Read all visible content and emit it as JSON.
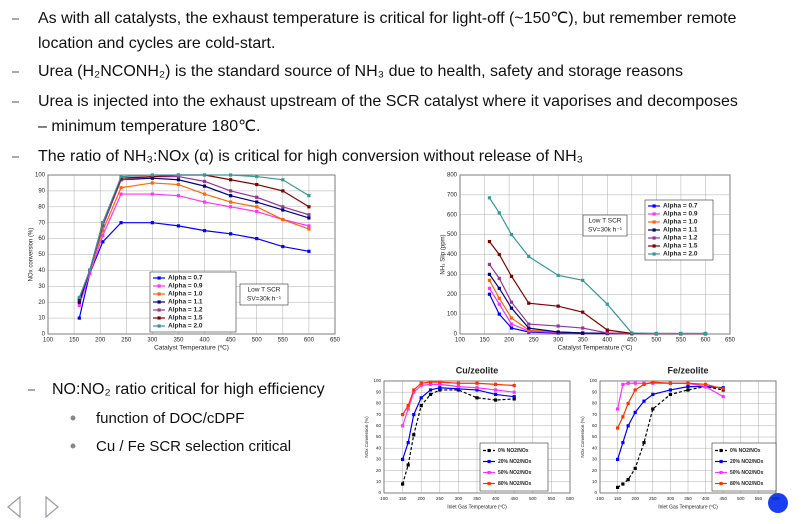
{
  "bullets": [
    "As with all catalysts, the exhaust temperature is critical for light-off (~150℃), but remember remote location and cycles are cold-start.",
    "Urea (H₂NCONH₂) is the standard source of NH₃ due to health, safety and storage reasons",
    "Urea is injected into the exhaust upstream of the SCR catalyst where it vaporises and decomposes – minimum temperature 180℃.",
    "The ratio of NH₃:NOx (α) is critical for high conversion without release of NH₃"
  ],
  "sub_section": {
    "text": "NO:NO₂ ratio critical for high efficiency",
    "items": [
      "function of DOC/cDPF",
      "Cu / Fe SCR selection critical"
    ]
  },
  "chart_data": [
    {
      "type": "line",
      "x_label": "Catalyst Temperature (ºC)",
      "y_label": "NOx conversion (%)",
      "annotations": [
        "Low T SCR",
        "SV=30k h⁻¹"
      ],
      "legend": "lower center",
      "xlim": [
        100,
        650
      ],
      "xticks": [
        100,
        150,
        200,
        250,
        300,
        350,
        400,
        450,
        500,
        550,
        600,
        650
      ],
      "ylim": [
        0,
        100
      ],
      "yticks": [
        0,
        10,
        20,
        30,
        40,
        50,
        60,
        70,
        80,
        90,
        100
      ],
      "grid": true,
      "x": [
        160,
        180,
        205,
        240,
        300,
        350,
        400,
        450,
        500,
        550,
        600
      ],
      "series": [
        {
          "name": "Alpha = 0.7",
          "color": "#0000ff",
          "values": [
            10,
            38,
            58,
            70,
            70,
            68,
            65,
            63,
            60,
            55,
            52
          ]
        },
        {
          "name": "Alpha = 0.9",
          "color": "#ff33ff",
          "values": [
            18,
            38,
            62,
            88,
            88,
            87,
            83,
            80,
            77,
            72,
            68
          ]
        },
        {
          "name": "Alpha = 1.0",
          "color": "#ff6600",
          "values": [
            20,
            40,
            65,
            92,
            95,
            94,
            88,
            83,
            80,
            72,
            66
          ]
        },
        {
          "name": "Alpha = 1.1",
          "color": "#000080",
          "values": [
            20,
            40,
            68,
            97,
            98,
            97,
            93,
            87,
            83,
            78,
            73
          ]
        },
        {
          "name": "Alpha = 1.2",
          "color": "#993399",
          "values": [
            22,
            40,
            68,
            97,
            99,
            99,
            96,
            90,
            86,
            80,
            75
          ]
        },
        {
          "name": "Alpha = 1.5",
          "color": "#800000",
          "values": [
            22,
            40,
            70,
            98,
            99,
            100,
            100,
            97,
            94,
            90,
            80
          ]
        },
        {
          "name": "Alpha = 2.0",
          "color": "#339999",
          "values": [
            23,
            40,
            70,
            99,
            100,
            100,
            100,
            100,
            99,
            97,
            87
          ]
        }
      ]
    },
    {
      "type": "line",
      "x_label": "Catalyst Temperature (ºC)",
      "y_label": "NH₃ Slip (ppm)",
      "annotations": [
        "Low T SCR",
        "SV=30k h⁻¹"
      ],
      "legend": "upper right",
      "xlim": [
        100,
        650
      ],
      "xticks": [
        100,
        150,
        200,
        250,
        300,
        350,
        400,
        450,
        500,
        550,
        600,
        650
      ],
      "ylim": [
        0,
        800
      ],
      "yticks": [
        0,
        100,
        200,
        300,
        400,
        500,
        600,
        700,
        800
      ],
      "grid": true,
      "x": [
        160,
        180,
        205,
        240,
        300,
        350,
        400,
        450,
        500,
        550,
        600
      ],
      "series": [
        {
          "name": "Alpha = 0.7",
          "color": "#0000ff",
          "values": [
            200,
            100,
            30,
            10,
            5,
            3,
            2,
            2,
            2,
            2,
            2
          ]
        },
        {
          "name": "Alpha = 0.9",
          "color": "#ff33ff",
          "values": [
            230,
            150,
            50,
            15,
            8,
            5,
            3,
            2,
            2,
            2,
            2
          ]
        },
        {
          "name": "Alpha = 1.0",
          "color": "#ff6600",
          "values": [
            270,
            180,
            80,
            20,
            10,
            5,
            3,
            2,
            2,
            2,
            2
          ]
        },
        {
          "name": "Alpha = 1.1",
          "color": "#000080",
          "values": [
            300,
            230,
            130,
            30,
            10,
            5,
            3,
            2,
            2,
            2,
            2
          ]
        },
        {
          "name": "Alpha = 1.2",
          "color": "#993399",
          "values": [
            350,
            280,
            160,
            50,
            40,
            30,
            5,
            2,
            2,
            2,
            2
          ]
        },
        {
          "name": "Alpha = 1.5",
          "color": "#800000",
          "values": [
            465,
            400,
            290,
            155,
            140,
            110,
            20,
            3,
            2,
            2,
            2
          ]
        },
        {
          "name": "Alpha = 2.0",
          "color": "#339999",
          "values": [
            685,
            610,
            500,
            390,
            295,
            270,
            150,
            5,
            3,
            3,
            3
          ]
        }
      ]
    },
    {
      "type": "line",
      "title": "Cu/zeolite",
      "title_color": "#1f4fbf",
      "x_label": "Inlet Gas Temperature (ºC)",
      "y_label": "NOx Conversion (%)",
      "legend": "lower right",
      "xlim": [
        100,
        600
      ],
      "xticks": [
        100,
        150,
        200,
        250,
        300,
        350,
        400,
        450,
        500,
        550,
        600
      ],
      "ylim": [
        0,
        100
      ],
      "yticks": [
        0,
        10,
        20,
        30,
        40,
        50,
        60,
        70,
        80,
        90,
        100
      ],
      "grid": true,
      "x": [
        150,
        165,
        180,
        200,
        225,
        250,
        300,
        350,
        400,
        450
      ],
      "series": [
        {
          "name": "0% NO2/NOx",
          "color": "#000000",
          "dash": true,
          "values": [
            8,
            25,
            52,
            78,
            88,
            92,
            92,
            85,
            83,
            84
          ]
        },
        {
          "name": "20% NO2/NOx",
          "color": "#0000ff",
          "values": [
            30,
            45,
            70,
            85,
            92,
            94,
            93,
            92,
            88,
            86
          ]
        },
        {
          "name": "50% NO2/NOx",
          "color": "#ff33ff",
          "values": [
            60,
            75,
            90,
            96,
            97,
            97,
            95,
            94,
            92,
            90
          ]
        },
        {
          "name": "80% NO2/NOx",
          "color": "#ff3300",
          "values": [
            70,
            78,
            92,
            98,
            99,
            99,
            98,
            98,
            97,
            96
          ]
        }
      ]
    },
    {
      "type": "line",
      "title": "Fe/zeolite",
      "title_color": "#ff6600",
      "x_label": "Inlet Gas Temperature (ºC)",
      "y_label": "NOx Conversion (%)",
      "legend": "lower right",
      "xlim": [
        100,
        600
      ],
      "xticks": [
        100,
        150,
        200,
        250,
        300,
        350,
        400,
        450,
        500,
        550,
        600
      ],
      "ylim": [
        0,
        100
      ],
      "yticks": [
        0,
        10,
        20,
        30,
        40,
        50,
        60,
        70,
        80,
        90,
        100
      ],
      "grid": true,
      "x": [
        150,
        165,
        180,
        200,
        225,
        250,
        300,
        350,
        400,
        450
      ],
      "series": [
        {
          "name": "0% NO2/NOx",
          "color": "#000000",
          "dash": true,
          "values": [
            5,
            8,
            12,
            22,
            45,
            75,
            88,
            92,
            95,
            92
          ]
        },
        {
          "name": "20% NO2/NOx",
          "color": "#0000ff",
          "values": [
            30,
            45,
            60,
            72,
            82,
            88,
            92,
            95,
            95,
            94
          ]
        },
        {
          "name": "50% NO2/NOx",
          "color": "#ff33ff",
          "values": [
            75,
            97,
            98,
            98,
            98,
            98,
            98,
            98,
            95,
            86
          ]
        },
        {
          "name": "80% NO2/NOx",
          "color": "#ff3300",
          "values": [
            58,
            68,
            80,
            92,
            97,
            99,
            98,
            98,
            97,
            93
          ]
        }
      ]
    }
  ]
}
